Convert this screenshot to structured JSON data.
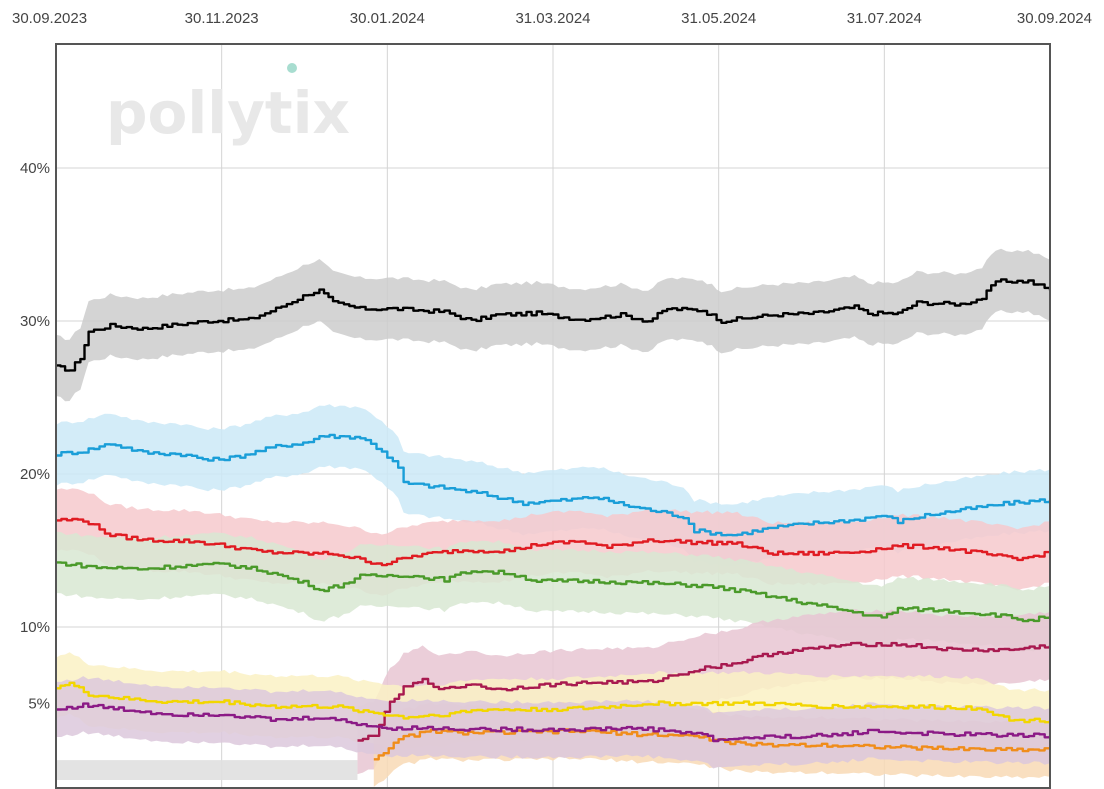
{
  "watermark": "pollytix",
  "chart_data": {
    "type": "line",
    "x_ticks": [
      "30.09.2023",
      "30.11.2023",
      "30.01.2024",
      "31.03.2024",
      "31.05.2024",
      "31.07.2024",
      "30.09.2024"
    ],
    "x_range": [
      "2023-09-30",
      "2024-09-30"
    ],
    "y_ticks": [
      {
        "value": 5,
        "label": "5%"
      },
      {
        "value": 10,
        "label": "10%"
      },
      {
        "value": 20,
        "label": "20%"
      },
      {
        "value": 30,
        "label": "30%"
      },
      {
        "value": 40,
        "label": "40%"
      }
    ],
    "ylim": [
      0,
      48
    ],
    "grid": true,
    "legend": "none",
    "series": [
      {
        "color": "#000000",
        "band_color": "#cccccc",
        "band_halfwidth": 2.0,
        "points": [
          [
            "2023-09-30",
            27.0
          ],
          [
            "2023-10-05",
            26.8
          ],
          [
            "2023-10-09",
            27.6
          ],
          [
            "2023-10-12",
            29.3
          ],
          [
            "2023-10-20",
            29.7
          ],
          [
            "2023-11-01",
            29.5
          ],
          [
            "2023-11-10",
            29.7
          ],
          [
            "2023-11-25",
            30.0
          ],
          [
            "2023-12-10",
            30.1
          ],
          [
            "2023-12-20",
            30.8
          ],
          [
            "2024-01-01",
            31.8
          ],
          [
            "2024-01-05",
            32.0
          ],
          [
            "2024-01-10",
            31.2
          ],
          [
            "2024-01-20",
            30.8
          ],
          [
            "2024-02-01",
            30.8
          ],
          [
            "2024-02-20",
            30.6
          ],
          [
            "2024-03-01",
            30.0
          ],
          [
            "2024-03-10",
            30.4
          ],
          [
            "2024-03-25",
            30.5
          ],
          [
            "2024-04-10",
            30.1
          ],
          [
            "2024-04-25",
            30.4
          ],
          [
            "2024-05-05",
            30.0
          ],
          [
            "2024-05-12",
            30.8
          ],
          [
            "2024-05-25",
            30.7
          ],
          [
            "2024-06-01",
            30.0
          ],
          [
            "2024-06-20",
            30.4
          ],
          [
            "2024-07-05",
            30.5
          ],
          [
            "2024-07-20",
            30.9
          ],
          [
            "2024-07-25",
            30.5
          ],
          [
            "2024-08-05",
            30.5
          ],
          [
            "2024-08-12",
            31.2
          ],
          [
            "2024-08-28",
            31.1
          ],
          [
            "2024-09-05",
            31.5
          ],
          [
            "2024-09-10",
            32.6
          ],
          [
            "2024-09-22",
            32.6
          ],
          [
            "2024-09-30",
            32.0
          ]
        ]
      },
      {
        "color": "#1a9ed8",
        "band_color": "#cbe9f7",
        "band_halfwidth": 2.0,
        "points": [
          [
            "2023-09-30",
            21.3
          ],
          [
            "2023-10-10",
            21.5
          ],
          [
            "2023-10-20",
            22.0
          ],
          [
            "2023-11-01",
            21.4
          ],
          [
            "2023-11-15",
            21.3
          ],
          [
            "2023-11-25",
            20.9
          ],
          [
            "2023-12-05",
            21.1
          ],
          [
            "2023-12-20",
            21.8
          ],
          [
            "2024-01-01",
            22.1
          ],
          [
            "2024-01-05",
            22.5
          ],
          [
            "2024-01-20",
            22.4
          ],
          [
            "2024-01-28",
            21.5
          ],
          [
            "2024-02-03",
            20.4
          ],
          [
            "2024-02-05",
            19.4
          ],
          [
            "2024-02-20",
            19.1
          ],
          [
            "2024-03-05",
            18.7
          ],
          [
            "2024-03-20",
            18.1
          ],
          [
            "2024-04-05",
            18.3
          ],
          [
            "2024-04-15",
            18.5
          ],
          [
            "2024-04-28",
            17.9
          ],
          [
            "2024-05-10",
            17.5
          ],
          [
            "2024-05-18",
            17.2
          ],
          [
            "2024-05-22",
            16.3
          ],
          [
            "2024-06-05",
            16.0
          ],
          [
            "2024-06-20",
            16.5
          ],
          [
            "2024-07-05",
            16.8
          ],
          [
            "2024-07-20",
            17.0
          ],
          [
            "2024-07-30",
            17.3
          ],
          [
            "2024-08-05",
            16.9
          ],
          [
            "2024-08-15",
            17.3
          ],
          [
            "2024-08-30",
            17.7
          ],
          [
            "2024-09-15",
            18.1
          ],
          [
            "2024-09-30",
            18.3
          ]
        ]
      },
      {
        "color": "#e01b22",
        "band_color": "#f6c9cc",
        "band_halfwidth": 2.0,
        "points": [
          [
            "2023-09-30",
            17.0
          ],
          [
            "2023-10-10",
            17.0
          ],
          [
            "2023-10-20",
            16.0
          ],
          [
            "2023-11-01",
            15.7
          ],
          [
            "2023-11-20",
            15.6
          ],
          [
            "2023-12-05",
            15.2
          ],
          [
            "2023-12-15",
            14.9
          ],
          [
            "2024-01-01",
            14.8
          ],
          [
            "2024-01-10",
            14.8
          ],
          [
            "2024-01-20",
            14.4
          ],
          [
            "2024-01-28",
            14.1
          ],
          [
            "2024-02-10",
            14.7
          ],
          [
            "2024-02-25",
            15.0
          ],
          [
            "2024-03-15",
            15.0
          ],
          [
            "2024-03-25",
            15.4
          ],
          [
            "2024-04-10",
            15.6
          ],
          [
            "2024-04-20",
            15.2
          ],
          [
            "2024-05-05",
            15.7
          ],
          [
            "2024-05-25",
            15.5
          ],
          [
            "2024-06-05",
            15.5
          ],
          [
            "2024-06-20",
            14.8
          ],
          [
            "2024-07-05",
            14.8
          ],
          [
            "2024-07-20",
            14.9
          ],
          [
            "2024-08-05",
            15.3
          ],
          [
            "2024-08-20",
            15.2
          ],
          [
            "2024-09-05",
            14.8
          ],
          [
            "2024-09-18",
            14.4
          ],
          [
            "2024-09-30",
            14.9
          ]
        ]
      },
      {
        "color": "#4a9a2a",
        "band_color": "#d8e8d2",
        "band_halfwidth": 2.0,
        "points": [
          [
            "2023-09-30",
            14.2
          ],
          [
            "2023-10-15",
            13.9
          ],
          [
            "2023-11-01",
            13.8
          ],
          [
            "2023-11-15",
            14.0
          ],
          [
            "2023-12-01",
            14.1
          ],
          [
            "2023-12-15",
            13.7
          ],
          [
            "2024-01-01",
            12.8
          ],
          [
            "2024-01-05",
            12.4
          ],
          [
            "2024-01-12",
            12.7
          ],
          [
            "2024-01-20",
            13.3
          ],
          [
            "2024-02-05",
            13.4
          ],
          [
            "2024-02-20",
            13.1
          ],
          [
            "2024-03-01",
            13.7
          ],
          [
            "2024-03-15",
            13.5
          ],
          [
            "2024-03-25",
            13.0
          ],
          [
            "2024-04-15",
            13.0
          ],
          [
            "2024-05-01",
            12.9
          ],
          [
            "2024-05-25",
            12.7
          ],
          [
            "2024-06-10",
            12.3
          ],
          [
            "2024-06-25",
            11.8
          ],
          [
            "2024-07-10",
            11.3
          ],
          [
            "2024-07-25",
            10.8
          ],
          [
            "2024-07-30",
            10.6
          ],
          [
            "2024-08-05",
            11.2
          ],
          [
            "2024-08-20",
            11.1
          ],
          [
            "2024-09-10",
            10.8
          ],
          [
            "2024-09-22",
            10.4
          ],
          [
            "2024-09-30",
            10.7
          ]
        ]
      },
      {
        "color": "#a8194f",
        "band_color": "#e8c5d2",
        "band_halfwidth": 2.2,
        "points": [
          [
            "2024-01-19",
            2.5
          ],
          [
            "2024-01-25",
            3.0
          ],
          [
            "2024-01-31",
            5.0
          ],
          [
            "2024-02-05",
            6.0
          ],
          [
            "2024-02-12",
            6.5
          ],
          [
            "2024-02-20",
            5.9
          ],
          [
            "2024-03-01",
            6.3
          ],
          [
            "2024-03-10",
            5.9
          ],
          [
            "2024-03-20",
            6.1
          ],
          [
            "2024-04-05",
            6.3
          ],
          [
            "2024-04-20",
            6.4
          ],
          [
            "2024-05-05",
            6.4
          ],
          [
            "2024-05-20",
            7.1
          ],
          [
            "2024-05-28",
            7.4
          ],
          [
            "2024-06-05",
            7.6
          ],
          [
            "2024-06-20",
            8.3
          ],
          [
            "2024-07-01",
            8.5
          ],
          [
            "2024-07-15",
            8.8
          ],
          [
            "2024-07-30",
            8.9
          ],
          [
            "2024-08-10",
            8.8
          ],
          [
            "2024-08-25",
            8.5
          ],
          [
            "2024-09-15",
            8.5
          ],
          [
            "2024-09-30",
            8.8
          ]
        ]
      },
      {
        "color": "#f2d600",
        "band_color": "#faf1c4",
        "band_halfwidth": 2.0,
        "points": [
          [
            "2023-09-30",
            6.1
          ],
          [
            "2023-10-05",
            6.3
          ],
          [
            "2023-10-12",
            5.6
          ],
          [
            "2023-10-25",
            5.3
          ],
          [
            "2023-11-10",
            5.1
          ],
          [
            "2023-12-01",
            5.1
          ],
          [
            "2023-12-20",
            4.8
          ],
          [
            "2024-01-10",
            4.8
          ],
          [
            "2024-01-25",
            4.4
          ],
          [
            "2024-02-05",
            4.1
          ],
          [
            "2024-02-20",
            4.3
          ],
          [
            "2024-03-05",
            4.6
          ],
          [
            "2024-03-25",
            4.6
          ],
          [
            "2024-04-15",
            4.7
          ],
          [
            "2024-05-05",
            5.0
          ],
          [
            "2024-05-25",
            5.0
          ],
          [
            "2024-06-15",
            5.0
          ],
          [
            "2024-07-10",
            4.8
          ],
          [
            "2024-08-05",
            4.8
          ],
          [
            "2024-09-05",
            4.7
          ],
          [
            "2024-09-15",
            3.9
          ],
          [
            "2024-09-30",
            3.9
          ]
        ]
      },
      {
        "color": "#f08d1a",
        "band_color": "#f8d9b5",
        "band_halfwidth": 1.8,
        "points": [
          [
            "2024-01-25",
            1.4
          ],
          [
            "2024-02-05",
            2.8
          ],
          [
            "2024-02-15",
            3.2
          ],
          [
            "2024-02-25",
            3.1
          ],
          [
            "2024-03-15",
            3.1
          ],
          [
            "2024-04-10",
            3.2
          ],
          [
            "2024-05-01",
            3.0
          ],
          [
            "2024-05-20",
            2.9
          ],
          [
            "2024-06-10",
            2.3
          ],
          [
            "2024-07-10",
            2.3
          ],
          [
            "2024-08-10",
            2.1
          ],
          [
            "2024-09-10",
            2.0
          ],
          [
            "2024-09-30",
            2.0
          ]
        ]
      },
      {
        "color": "#8b1a86",
        "band_color": "#dcc8dc",
        "band_halfwidth": 1.8,
        "points": [
          [
            "2023-09-30",
            4.6
          ],
          [
            "2023-10-10",
            4.9
          ],
          [
            "2023-10-25",
            4.6
          ],
          [
            "2023-11-10",
            4.3
          ],
          [
            "2023-12-01",
            4.3
          ],
          [
            "2023-12-20",
            3.9
          ],
          [
            "2024-01-05",
            4.1
          ],
          [
            "2024-01-15",
            3.8
          ],
          [
            "2024-01-28",
            3.4
          ],
          [
            "2024-02-10",
            3.4
          ],
          [
            "2024-03-10",
            3.3
          ],
          [
            "2024-04-10",
            3.3
          ],
          [
            "2024-05-01",
            3.4
          ],
          [
            "2024-05-25",
            3.0
          ],
          [
            "2024-05-29",
            2.6
          ],
          [
            "2024-06-15",
            2.8
          ],
          [
            "2024-07-10",
            2.9
          ],
          [
            "2024-07-25",
            3.2
          ],
          [
            "2024-08-20",
            3.0
          ],
          [
            "2024-09-30",
            2.9
          ]
        ]
      }
    ],
    "extra_bands": [
      {
        "color": "#e0e0e0",
        "from": "2023-09-30",
        "to": "2024-01-19",
        "low": 0,
        "high": 1.3
      }
    ]
  }
}
